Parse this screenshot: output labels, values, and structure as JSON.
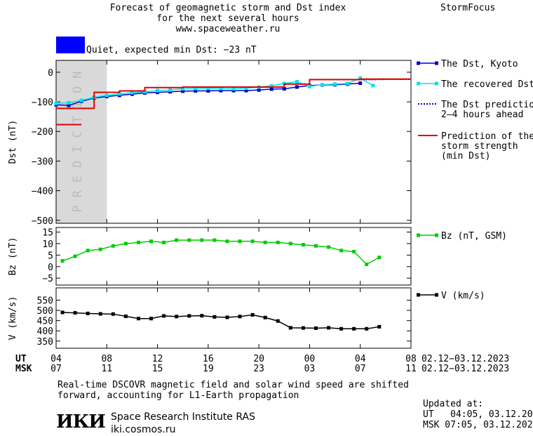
{
  "header": {
    "title_lines": [
      "Forecast of geomagnetic storm and Dst index",
      "for the next several hours",
      "www.spaceweather.ru"
    ],
    "brand": "StormFocus"
  },
  "status": {
    "text": "Quiet, expected min Dst: −23 nT",
    "color": "#0000ff"
  },
  "chart_data": [
    {
      "type": "line",
      "id": "dst",
      "ylabel": "Dst (nT)",
      "ylim": [
        -510,
        40
      ],
      "yticks": [
        0,
        -100,
        -200,
        -300,
        -400,
        -500
      ],
      "ytick_labels": [
        "0",
        "−100",
        "−200",
        "−300",
        "−400",
        "−500"
      ],
      "prediction_label": "PREDICTION",
      "prediction_band": [
        4,
        8
      ],
      "series": [
        {
          "name": "The Dst, Kyoto",
          "color": "#0000cc",
          "marker": "square",
          "x": [
            4,
            5,
            6,
            7,
            8,
            9,
            10,
            11,
            12,
            13,
            14,
            15,
            16,
            17,
            18,
            19,
            20,
            21,
            22,
            23,
            24,
            25,
            26,
            27,
            28
          ],
          "y": [
            -110,
            -112,
            -98,
            -87,
            -82,
            -78,
            -74,
            -70,
            -68,
            -66,
            -64,
            -63,
            -63,
            -62,
            -62,
            -62,
            -60,
            -57,
            -56,
            -50,
            -45,
            -43,
            -42,
            -40,
            -37
          ]
        },
        {
          "name": "The recovered Dst",
          "color": "#00e5e5",
          "marker": "square",
          "x": [
            4,
            5,
            6,
            7,
            8,
            9,
            10,
            11,
            12,
            13,
            14,
            15,
            16,
            17,
            18,
            19,
            20,
            21,
            22,
            23,
            24,
            25,
            26,
            27,
            28,
            29
          ],
          "y": [
            -105,
            -103,
            -95,
            -85,
            -78,
            -73,
            -69,
            -66,
            -62,
            -60,
            -56,
            -55,
            -54,
            -55,
            -56,
            -54,
            -50,
            -46,
            -38,
            -32,
            -48,
            -42,
            -40,
            -38,
            -20,
            -45
          ]
        },
        {
          "name": "The Dst prediction\n2–4 hours ahead",
          "color": "#0000cc",
          "style": "dotted",
          "x": [
            28,
            29,
            30,
            32
          ],
          "y": [
            -25,
            -25,
            -24,
            -24
          ]
        },
        {
          "name": "Prediction of the\nstorm strength\n(min Dst)",
          "color": "#dd0000",
          "style": "step",
          "x": [
            4,
            6,
            7,
            9,
            11,
            14,
            17,
            20,
            22,
            24,
            28,
            32
          ],
          "y": [
            -122,
            -122,
            -68,
            -63,
            -52,
            -50,
            -50,
            -50,
            -40,
            -25,
            -23,
            -23
          ]
        },
        {
          "name": "",
          "color": "#dd0000",
          "style": "segment",
          "x": [
            4,
            6
          ],
          "y": [
            -177,
            -177
          ]
        }
      ]
    },
    {
      "type": "line",
      "id": "bz",
      "ylabel": "Bz (nT)",
      "ylim": [
        -8,
        17
      ],
      "yticks": [
        15,
        10,
        5,
        0,
        -5
      ],
      "ytick_labels": [
        "15",
        "10",
        "5",
        "0",
        "−5"
      ],
      "series": [
        {
          "name": "Bz (nT, GSM)",
          "color": "#00cc00",
          "marker": "square",
          "x": [
            4.5,
            5.5,
            6.5,
            7.5,
            8.5,
            9.5,
            10.5,
            11.5,
            12.5,
            13.5,
            14.5,
            15.5,
            16.5,
            17.5,
            18.5,
            19.5,
            20.5,
            21.5,
            22.5,
            23.5,
            24.5,
            25.5,
            26.5,
            27.5,
            28.5,
            29.5
          ],
          "y": [
            2.5,
            4.5,
            7,
            7.5,
            9,
            10,
            10.5,
            11,
            10.5,
            11.5,
            11.5,
            11.5,
            11.5,
            11,
            11,
            11,
            10.5,
            10.5,
            10,
            9.5,
            9,
            8.5,
            7,
            6.5,
            1,
            4
          ]
        }
      ]
    },
    {
      "type": "line",
      "id": "v",
      "ylabel": "V (km/s)",
      "ylim": [
        315,
        610
      ],
      "yticks": [
        550,
        500,
        450,
        400,
        350
      ],
      "ytick_labels": [
        "550",
        "500",
        "450",
        "400",
        "350"
      ],
      "series": [
        {
          "name": "V (km/s)",
          "color": "#000000",
          "marker": "square",
          "x": [
            4.5,
            5.5,
            6.5,
            7.5,
            8.5,
            9.5,
            10.5,
            11.5,
            12.5,
            13.5,
            14.5,
            15.5,
            16.5,
            17.5,
            18.5,
            19.5,
            20.5,
            21.5,
            22.5,
            23.5,
            24.5,
            25.5,
            26.5,
            27.5,
            28.5,
            29.5
          ],
          "y": [
            490,
            488,
            485,
            483,
            482,
            471,
            460,
            460,
            473,
            470,
            473,
            474,
            468,
            466,
            470,
            478,
            465,
            448,
            415,
            414,
            413,
            415,
            410,
            410,
            410,
            420
          ]
        }
      ]
    }
  ],
  "xaxis": {
    "range": [
      4,
      32
    ],
    "ticks": [
      4,
      8,
      12,
      16,
      20,
      24,
      28,
      32
    ],
    "ut_prefix": "UT",
    "msk_prefix": "MSK",
    "ut_labels": [
      "04",
      "08",
      "12",
      "16",
      "20",
      "00",
      "04",
      "08"
    ],
    "msk_labels": [
      "07",
      "11",
      "15",
      "19",
      "23",
      "03",
      "07",
      "11"
    ],
    "ut_range": "02.12−03.12.2023",
    "msk_range": "02.12−03.12.2023"
  },
  "footer": {
    "note_lines": [
      "Real-time DSCOVR magnetic field and solar wind speed are shifted",
      "forward, accounting for L1-Earth propagation"
    ],
    "logo": "ИКИ",
    "institute_lines": [
      "Space Research Institute RAS",
      "iki.cosmos.ru"
    ],
    "updated_lines": [
      "Updated at:",
      "UT   04:05, 03.12.2023",
      "MSK 07:05, 03.12.2023"
    ]
  }
}
